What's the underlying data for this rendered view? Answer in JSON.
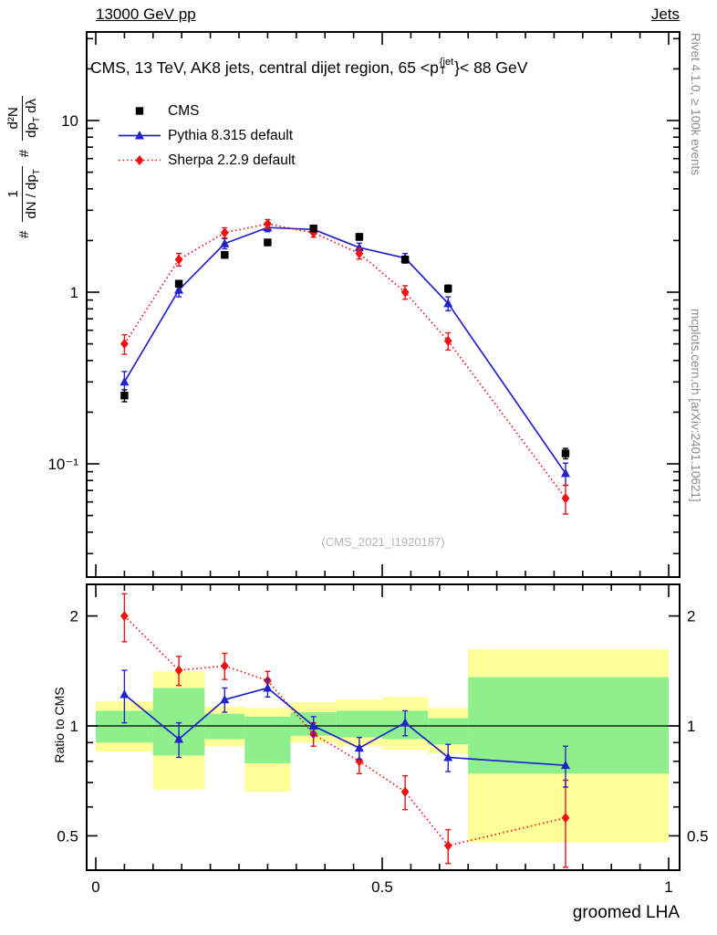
{
  "header": {
    "left": "13000 GeV pp",
    "right": "Jets"
  },
  "main_title": {
    "prefix": "CMS, 13 TeV, AK8 jets, central dijet region, 65 <p",
    "sup": "{jet",
    "sub": "T",
    "suffix": "}< 88 GeV"
  },
  "ylabel": {
    "hash1": "#",
    "frac1_num": "1",
    "frac1_den": "dN / dp",
    "frac1_den_sub": "T",
    "hash2": "#",
    "frac2_num": "d²N",
    "frac2_den": "dp",
    "frac2_den_sub": "T",
    "frac2_den_tail": " dλ"
  },
  "ratio_ylabel": "Ratio to CMS",
  "xlabel": "groomed LHA",
  "watermark": "(CMS_2021_I1920187)",
  "side_notes": {
    "top": "Rivet 4.1.0, ≥ 100k events",
    "bottom": "mcplots.cern.ch [arXiv:2401.10621]"
  },
  "legend": {
    "items": [
      {
        "label": "CMS"
      },
      {
        "label": "Pythia 8.315 default"
      },
      {
        "label": "Sherpa 2.2.9 default"
      }
    ]
  },
  "chart_data": {
    "type": "line",
    "title": "CMS, 13 TeV, AK8 jets, central dijet region, 65 < pT^jet < 88 GeV",
    "xlabel": "groomed LHA",
    "xlim": [
      0,
      1
    ],
    "xticks": [
      {
        "v": 0,
        "t": "0"
      },
      {
        "v": 0.5,
        "t": "0.5"
      },
      {
        "v": 1,
        "t": "1"
      }
    ],
    "main_panel": {
      "yscale": "log",
      "ylabel": "1/(dN/dpT) d2N/(dpT dlambda)",
      "ylim": [
        0.022,
        32
      ],
      "yticks": [
        {
          "v": 10,
          "t": "10"
        },
        {
          "v": 1,
          "t": "1"
        },
        {
          "v": 0.1,
          "t": "10⁻¹"
        }
      ],
      "x": [
        0.05,
        0.145,
        0.225,
        0.3,
        0.38,
        0.46,
        0.54,
        0.615,
        0.82
      ],
      "series": [
        {
          "name": "CMS",
          "marker": "square",
          "color": "#000000",
          "line": "none",
          "values": [
            0.25,
            1.12,
            1.65,
            1.95,
            2.35,
            2.1,
            1.55,
            1.05,
            0.115
          ],
          "errors": [
            0.02,
            0.05,
            0.07,
            0.08,
            0.09,
            0.09,
            0.07,
            0.05,
            0.008
          ]
        },
        {
          "name": "Pythia 8.315 default",
          "marker": "triangle",
          "color": "#2222cc",
          "line": "solid",
          "values": [
            0.3,
            1.03,
            1.92,
            2.38,
            2.32,
            1.82,
            1.58,
            0.86,
            0.088
          ],
          "errors": [
            0.045,
            0.09,
            0.13,
            0.13,
            0.12,
            0.11,
            0.1,
            0.08,
            0.013
          ]
        },
        {
          "name": "Sherpa 2.2.9 default",
          "marker": "diamond",
          "color": "#ee1111",
          "line": "dotted",
          "values": [
            0.5,
            1.55,
            2.22,
            2.5,
            2.22,
            1.68,
            1.0,
            0.52,
            0.063
          ],
          "errors": [
            0.065,
            0.13,
            0.15,
            0.15,
            0.13,
            0.12,
            0.09,
            0.06,
            0.012
          ]
        }
      ]
    },
    "ratio_panel": {
      "yscale": "log",
      "ylabel": "Ratio to CMS",
      "ylim": [
        0.4,
        2.45
      ],
      "reference_line": 1,
      "yticks": [
        {
          "v": 0.5,
          "t": "0.5"
        },
        {
          "v": 1,
          "t": "1"
        },
        {
          "v": 2,
          "t": "2"
        }
      ],
      "bin_edges": [
        0.0,
        0.1,
        0.19,
        0.26,
        0.34,
        0.42,
        0.5,
        0.58,
        0.65,
        1.0
      ],
      "bands": {
        "yellow_color": "#ffff99",
        "green_color": "#8df08d",
        "yellow": [
          [
            0.85,
            1.17
          ],
          [
            0.67,
            1.41
          ],
          [
            0.88,
            1.13
          ],
          [
            0.66,
            1.12
          ],
          [
            0.9,
            1.16
          ],
          [
            0.88,
            1.18
          ],
          [
            0.86,
            1.2
          ],
          [
            0.84,
            1.12
          ],
          [
            0.48,
            1.62
          ]
        ],
        "green": [
          [
            0.9,
            1.1
          ],
          [
            0.83,
            1.27
          ],
          [
            0.92,
            1.08
          ],
          [
            0.79,
            1.06
          ],
          [
            0.94,
            1.09
          ],
          [
            0.93,
            1.1
          ],
          [
            0.92,
            1.1
          ],
          [
            0.89,
            1.05
          ],
          [
            0.74,
            1.36
          ]
        ]
      },
      "x": [
        0.05,
        0.145,
        0.225,
        0.3,
        0.38,
        0.46,
        0.54,
        0.615,
        0.82
      ],
      "series": [
        {
          "name": "Pythia 8.315 default / CMS",
          "marker": "triangle",
          "color": "#2222cc",
          "line": "solid",
          "values": [
            1.22,
            0.92,
            1.18,
            1.27,
            1.0,
            0.87,
            1.02,
            0.82,
            0.78
          ],
          "errors": [
            0.2,
            0.1,
            0.09,
            0.07,
            0.06,
            0.06,
            0.08,
            0.07,
            0.1
          ]
        },
        {
          "name": "Sherpa 2.2.9 default / CMS",
          "marker": "diamond",
          "color": "#ee1111",
          "line": "dotted",
          "values": [
            2.0,
            1.42,
            1.46,
            1.33,
            0.95,
            0.8,
            0.66,
            0.47,
            0.56
          ],
          "errors": [
            0.3,
            0.13,
            0.12,
            0.08,
            0.07,
            0.06,
            0.07,
            0.05,
            0.15
          ]
        }
      ]
    }
  }
}
